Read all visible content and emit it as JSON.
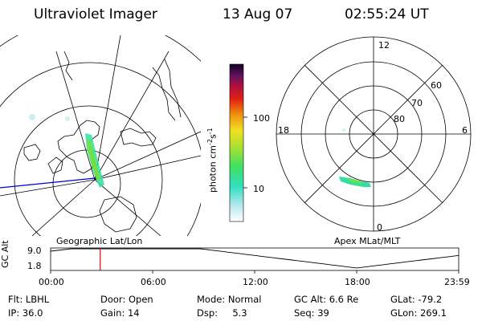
{
  "header": {
    "title": "Ultraviolet Imager",
    "date": "13 Aug 07",
    "time": "02:55:24 UT"
  },
  "colorbar": {
    "label": "photon cm",
    "label_sup1": "-2",
    "label_s": "s",
    "label_sup2": "-1",
    "ticks": [
      "100",
      "10"
    ]
  },
  "polar_plot": {
    "mlt_labels": {
      "top": "12",
      "right": "6",
      "bottom": "0",
      "left": "18"
    },
    "lat_labels": [
      "60",
      "70",
      "80"
    ]
  },
  "map_labels": {
    "geographic": "Geographic Lat/Lon",
    "apex": "Apex MLat/MLT"
  },
  "altitude_plot": {
    "ylabel": "GC Alt",
    "yticks": [
      "9.0",
      "1.8"
    ],
    "xticks": [
      "00:00",
      "06:00",
      "12:00",
      "18:00",
      "23:59"
    ],
    "marker_time": "02:55"
  },
  "info": {
    "row1": [
      {
        "label": "Flt:",
        "value": "LBHL"
      },
      {
        "label": "Door:",
        "value": "Open"
      },
      {
        "label": "Mode:",
        "value": "Normal"
      },
      {
        "label": "GC Alt:",
        "value": "6.6 Re"
      },
      {
        "label": "GLat:",
        "value": "-79.2"
      }
    ],
    "row2": [
      {
        "label": "IP:",
        "value": "36.0"
      },
      {
        "label": "Gain:",
        "value": "14"
      },
      {
        "label": "Dsp:",
        "value": "5.3"
      },
      {
        "label": "Seq:",
        "value": "39"
      },
      {
        "label": "GLon:",
        "value": "269.1"
      }
    ]
  },
  "colors": {
    "axis": "#000000",
    "marker": "#dd0000",
    "track": "#0000cc"
  }
}
